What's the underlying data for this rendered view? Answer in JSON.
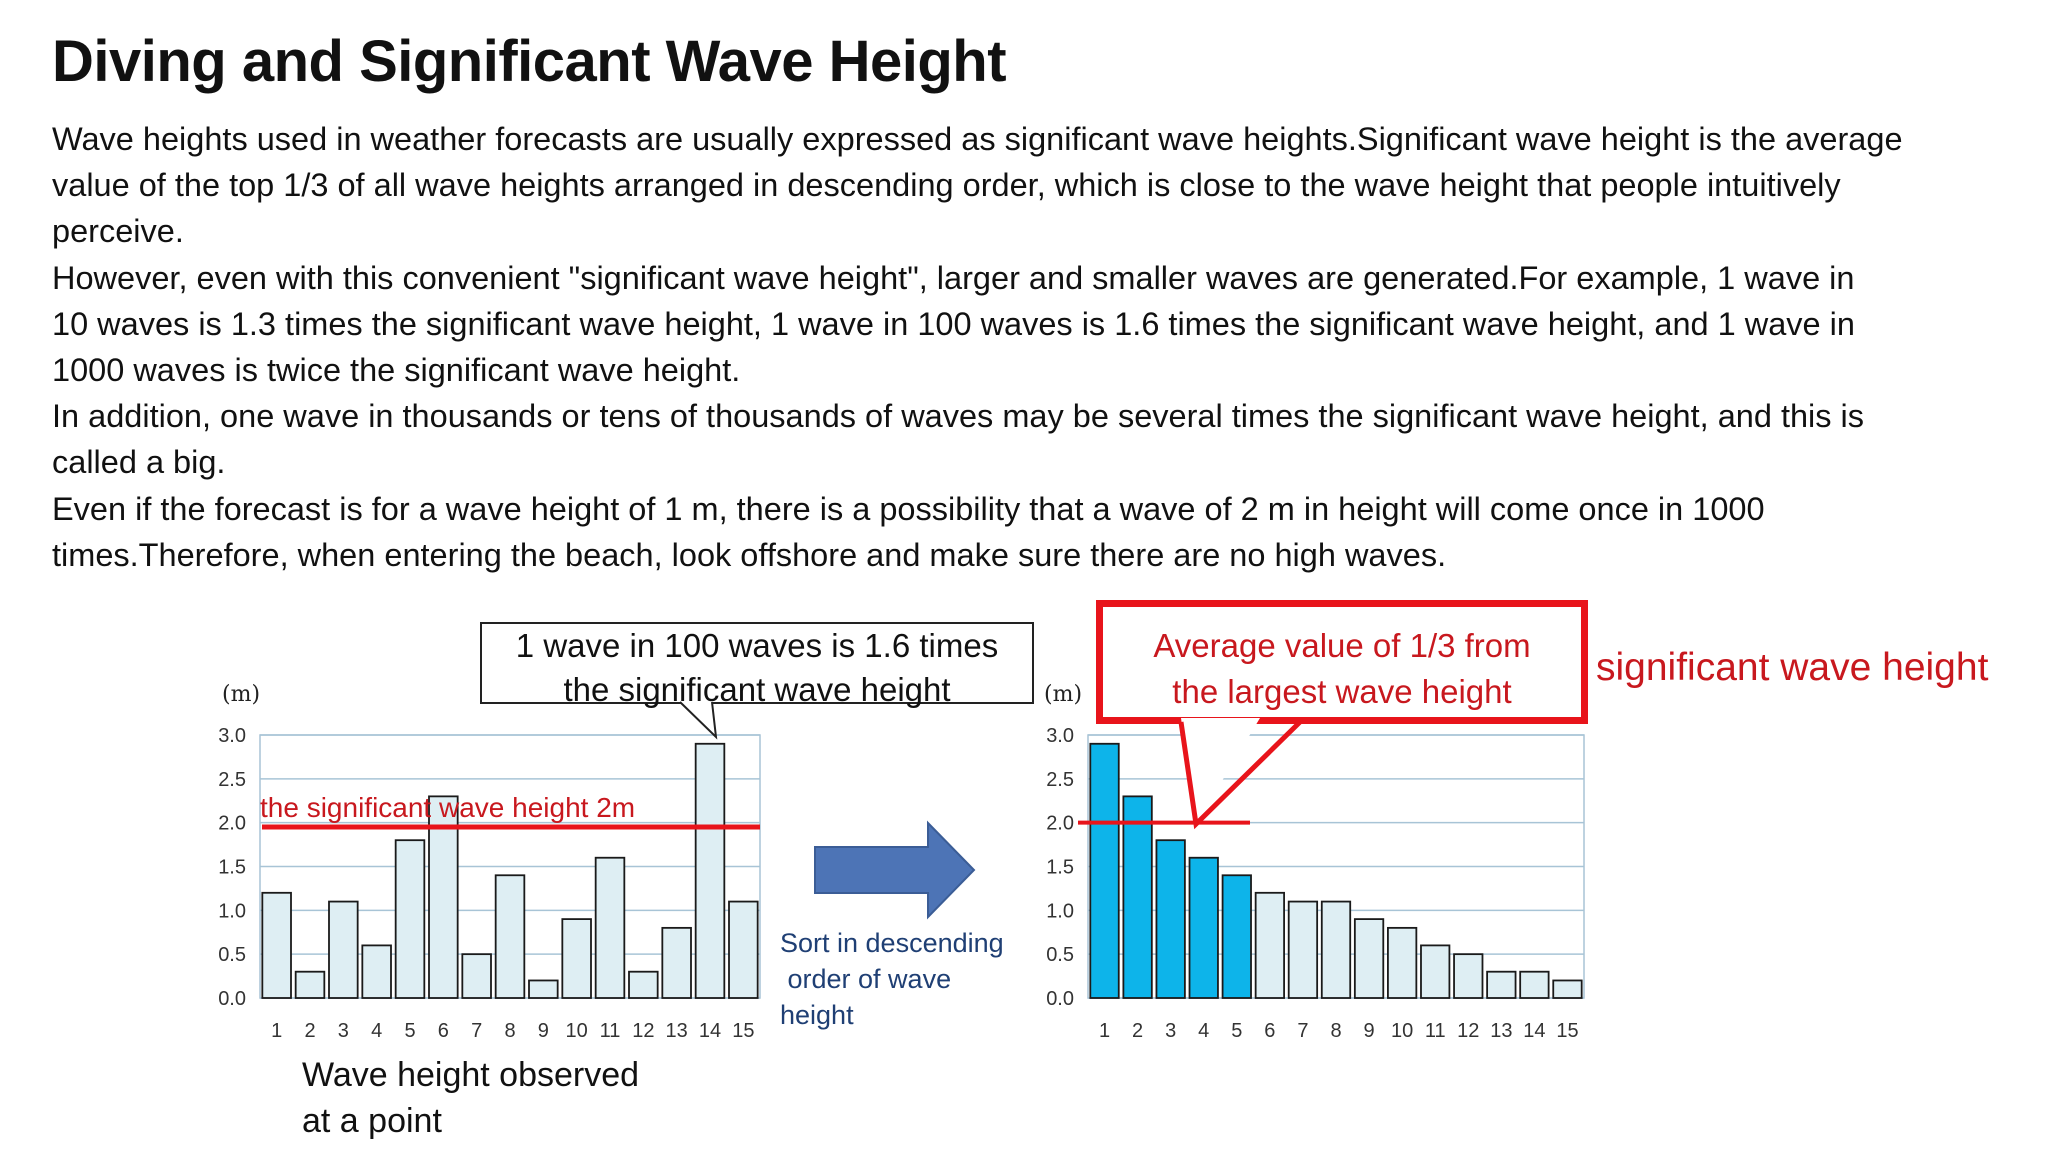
{
  "title": "Diving and Significant Wave Height",
  "paragraph_lines": [
    "Wave heights used in weather forecasts are usually expressed as significant wave heights.Significant wave height is the average",
    "value of the top 1/3 of all wave heights arranged in descending order, which is close to the wave height that people intuitively",
    "perceive.",
    "However, even with this convenient \"significant wave height\", larger and smaller waves are generated.For example, 1 wave in",
    "10 waves is 1.3 times the significant wave height, 1 wave in 100 waves is 1.6 times the significant wave height, and 1 wave in",
    "1000 waves is twice the significant wave height.",
    "In addition, one wave in thousands or tens of thousands of waves may be several times the significant wave height, and this is",
    "called a big.",
    "Even if the forecast is for a wave height of 1 m, there is a possibility that a wave of 2 m in height will come once in 1000",
    "times.Therefore, when entering the beach, look offshore and make sure there are no high waves."
  ],
  "callout": {
    "line1": "1 wave in 100 waves is 1.6 times",
    "line2": "the significant wave height"
  },
  "red_box": {
    "line1": "Average value of 1/3 from",
    "line2": "the largest wave height"
  },
  "significant_label": "significant wave height",
  "sort_label": "Sort in descending\n order of wave\nheight",
  "observed_label": "Wave height observed\nat a point",
  "colors": {
    "light_bar": "#deeef3",
    "highlight_bar": "#0db4ea",
    "red": "#e8141b",
    "red_text": "#c8181e",
    "arrow": "#4d74b6",
    "grid": "#a8c4d6"
  },
  "chart_data": [
    {
      "type": "bar",
      "ylabel": "(m)",
      "xlabel": "",
      "ylim": [
        0,
        3.0
      ],
      "yticks": [
        "0.0",
        "0.5",
        "1.0",
        "1.5",
        "2.0",
        "2.5",
        "3.0"
      ],
      "categories": [
        "1",
        "2",
        "3",
        "4",
        "5",
        "6",
        "7",
        "8",
        "9",
        "10",
        "11",
        "12",
        "13",
        "14",
        "15"
      ],
      "values": [
        1.2,
        0.3,
        1.1,
        0.6,
        1.8,
        2.3,
        0.5,
        1.4,
        0.2,
        0.9,
        1.6,
        0.3,
        0.8,
        2.9,
        1.1
      ],
      "reference_line": {
        "value": 1.95,
        "label": "the significant wave height 2m"
      },
      "grid": true
    },
    {
      "type": "bar",
      "ylabel": "(m)",
      "xlabel": "",
      "ylim": [
        0,
        3.0
      ],
      "yticks": [
        "0.0",
        "0.5",
        "1.0",
        "1.5",
        "2.0",
        "2.5",
        "3.0"
      ],
      "categories": [
        "1",
        "2",
        "3",
        "4",
        "5",
        "6",
        "7",
        "8",
        "9",
        "10",
        "11",
        "12",
        "13",
        "14",
        "15"
      ],
      "values": [
        2.9,
        2.3,
        1.8,
        1.6,
        1.4,
        1.2,
        1.1,
        1.1,
        0.9,
        0.8,
        0.6,
        0.5,
        0.3,
        0.3,
        0.2
      ],
      "highlighted_count": 5,
      "reference_line": {
        "value": 2.0
      },
      "grid": true
    }
  ]
}
